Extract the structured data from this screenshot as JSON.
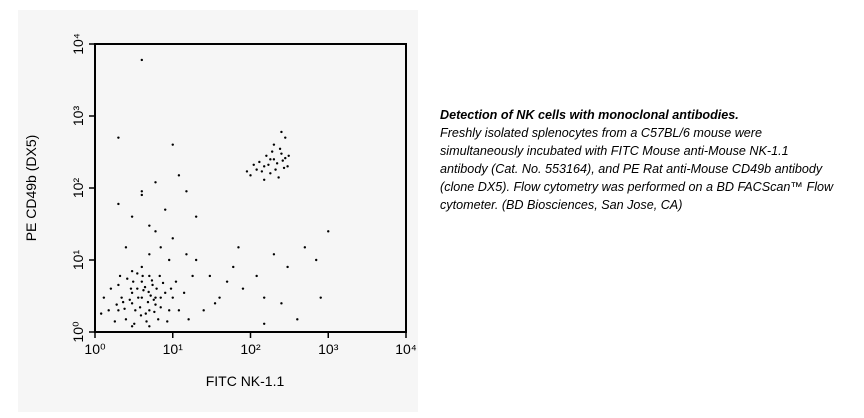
{
  "chart_data": {
    "type": "scatter",
    "xlabel": "FITC NK-1.1",
    "ylabel": "PE CD49b (DX5)",
    "caption_title": "Detection of NK cells with monoclonal antibodies.",
    "caption": "Freshly isolated splenocytes from a C57BL/6 mouse were simultaneously incubated with FITC Mouse anti-Mouse NK-1.1 antibody (Cat. No. 553164), and PE Rat anti-Mouse CD49b antibody (clone DX5). Flow cytometry was performed on a BD FACScan™ Flow cytometer. (BD Biosciences, San Jose, CA)",
    "xscale": "log",
    "yscale": "log",
    "xlim": [
      1,
      10000
    ],
    "ylim": [
      1,
      10000
    ],
    "xticks": [
      {
        "value": 1,
        "label": "10⁰"
      },
      {
        "value": 10,
        "label": "10¹"
      },
      {
        "value": 100,
        "label": "10²"
      },
      {
        "value": 1000,
        "label": "10³"
      },
      {
        "value": 10000,
        "label": "10⁴"
      }
    ],
    "yticks": [
      {
        "value": 1,
        "label": "10⁰"
      },
      {
        "value": 10,
        "label": "10¹"
      },
      {
        "value": 100,
        "label": "10²"
      },
      {
        "value": 1000,
        "label": "10³"
      },
      {
        "value": 10000,
        "label": "10⁴"
      }
    ],
    "color": "#000000",
    "x": [
      2,
      3,
      4,
      5,
      3.5,
      2.5,
      6,
      4.5,
      3,
      5.5,
      2.2,
      7,
      4,
      3.2,
      8,
      1.5,
      5,
      2.8,
      6.5,
      3.8,
      4.2,
      9,
      2,
      5.2,
      3.5,
      1.8,
      7.5,
      4.8,
      2.6,
      6,
      10,
      3,
      5,
      1.3,
      4,
      11,
      2.4,
      6.8,
      3.6,
      4.4,
      5.8,
      2.1,
      8.5,
      1.6,
      3.3,
      4.6,
      7,
      2.9,
      5.4,
      12,
      1.2,
      3.9,
      6.2,
      2.3,
      4.1,
      9.5,
      1.9,
      5.7,
      3.1,
      4.9,
      150,
      200,
      120,
      250,
      180,
      220,
      300,
      100,
      160,
      280,
      130,
      210,
      240,
      170,
      270,
      140,
      190,
      110,
      230,
      260,
      200,
      150,
      310,
      180,
      90,
      280,
      250,
      2,
      3,
      4,
      5,
      8,
      6,
      15,
      2.5,
      10,
      20,
      30,
      50,
      80,
      150,
      200,
      250,
      300,
      500,
      700,
      800,
      150,
      40,
      25,
      60,
      20,
      12,
      6,
      4,
      3,
      18,
      400,
      1000,
      2,
      4,
      10,
      15,
      35,
      70,
      120,
      7,
      9,
      5,
      14,
      16
    ],
    "values": [
      2,
      2.5,
      3,
      2,
      4,
      1.5,
      3,
      1.8,
      3.5,
      4.5,
      3,
      2.2,
      5,
      1.3,
      3.5,
      2,
      6,
      2.8,
      1.5,
      2.2,
      3.8,
      2,
      4.5,
      3.2,
      6.5,
      1.4,
      4.8,
      2.6,
      5.5,
      2.4,
      3,
      1.2,
      1.2,
      3,
      8,
      5,
      2.1,
      6,
      3,
      4.2,
      1.9,
      6,
      1.4,
      4,
      2,
      1.4,
      3,
      4,
      5.2,
      2,
      1.8,
      1.7,
      4,
      2.6,
      6,
      4,
      2.4,
      2.8,
      5,
      3.6,
      200,
      250,
      180,
      300,
      160,
      220,
      200,
      150,
      280,
      260,
      230,
      180,
      350,
      210,
      190,
      170,
      320,
      210,
      140,
      240,
      400,
      130,
      280,
      250,
      170,
      500,
      600,
      60,
      40,
      80,
      30,
      50,
      25,
      90,
      15,
      20,
      10,
      6,
      5,
      4,
      3,
      12,
      2.5,
      8,
      15,
      10,
      3,
      1.3,
      3,
      2,
      8,
      40,
      150,
      120,
      90,
      7,
      6,
      1.5,
      25,
      500,
      6000,
      400,
      12,
      2.5,
      15,
      6,
      15,
      10,
      12,
      3.5,
      1.5
    ]
  }
}
